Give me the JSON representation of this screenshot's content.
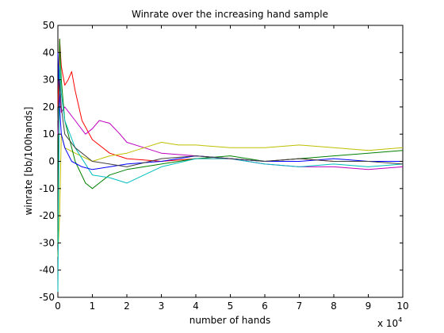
{
  "chart_data": {
    "type": "line",
    "title": "Winrate over the increasing hand sample",
    "xlabel": "number of hands",
    "ylabel": "winrate [bb/100hands]",
    "x_multiplier": {
      "base": "x 10",
      "exponent": "4"
    },
    "xlim": [
      0,
      10
    ],
    "ylim": [
      -50,
      50
    ],
    "xticks": [
      "0",
      "1",
      "2",
      "3",
      "4",
      "5",
      "6",
      "7",
      "8",
      "9",
      "10"
    ],
    "yticks": [
      "-50",
      "-40",
      "-30",
      "-20",
      "-10",
      "0",
      "10",
      "20",
      "30",
      "40",
      "50"
    ],
    "grid": false,
    "legend": false,
    "series": [
      {
        "color": "#FF0000",
        "x": [
          0,
          0.05,
          0.1,
          0.2,
          0.3,
          0.4,
          0.5,
          0.7,
          1,
          1.5,
          2,
          3,
          4,
          5,
          6,
          7,
          8,
          9,
          10
        ],
        "y": [
          20,
          45,
          35,
          28,
          30,
          33,
          26,
          15,
          8,
          3,
          1,
          0,
          1,
          1,
          0,
          1,
          0,
          0,
          0
        ]
      },
      {
        "color": "#BF00BF",
        "x": [
          0,
          0.05,
          0.1,
          0.2,
          0.5,
          0.8,
          1,
          1.2,
          1.5,
          1.8,
          2,
          2.5,
          3,
          4,
          5,
          6,
          7,
          8,
          9,
          10
        ],
        "y": [
          10,
          25,
          18,
          20,
          15,
          10,
          12,
          15,
          14,
          10,
          7,
          5,
          3,
          2,
          1,
          -1,
          -2,
          -2,
          -3,
          -2
        ]
      },
      {
        "color": "#BFBF00",
        "x": [
          0,
          0.05,
          0.1,
          0.2,
          0.5,
          1,
          1.5,
          2,
          2.5,
          3,
          3.5,
          4,
          5,
          6,
          7,
          8,
          9,
          10
        ],
        "y": [
          -35,
          -20,
          10,
          5,
          3,
          0,
          2,
          3,
          5,
          7,
          6,
          6,
          5,
          5,
          6,
          5,
          4,
          5
        ]
      },
      {
        "color": "#008000",
        "x": [
          0,
          0.05,
          0.1,
          0.2,
          0.5,
          0.8,
          1,
          1.2,
          1.5,
          2,
          3,
          4,
          5,
          6,
          7,
          8,
          9,
          10
        ],
        "y": [
          -30,
          45,
          30,
          15,
          0,
          -8,
          -10,
          -8,
          -5,
          -3,
          -1,
          1,
          2,
          0,
          1,
          2,
          3,
          4
        ]
      },
      {
        "color": "#00BFBF",
        "x": [
          0,
          0.05,
          0.1,
          0.2,
          0.5,
          1,
          1.5,
          2,
          3,
          4,
          5,
          6,
          7,
          8,
          9,
          10
        ],
        "y": [
          -48,
          35,
          25,
          15,
          5,
          -5,
          -6,
          -8,
          -2,
          1,
          1,
          -1,
          -2,
          -1,
          -2,
          -1
        ]
      },
      {
        "color": "#0000FF",
        "x": [
          0,
          0.05,
          0.1,
          0.2,
          0.4,
          0.7,
          1,
          1.5,
          2,
          3,
          4,
          5,
          6,
          7,
          8,
          9,
          10
        ],
        "y": [
          40,
          20,
          10,
          5,
          0,
          -2,
          -3,
          -2,
          -1,
          0,
          2,
          1,
          0,
          0,
          1,
          0,
          0
        ]
      },
      {
        "color": "#404040",
        "x": [
          0,
          0.05,
          0.1,
          0.2,
          0.5,
          1,
          1.5,
          2,
          3,
          4,
          5,
          6,
          7,
          8,
          9,
          10
        ],
        "y": [
          15,
          30,
          20,
          10,
          5,
          0,
          -1,
          -2,
          1,
          2,
          1,
          0,
          1,
          0,
          0,
          -1
        ]
      }
    ]
  }
}
